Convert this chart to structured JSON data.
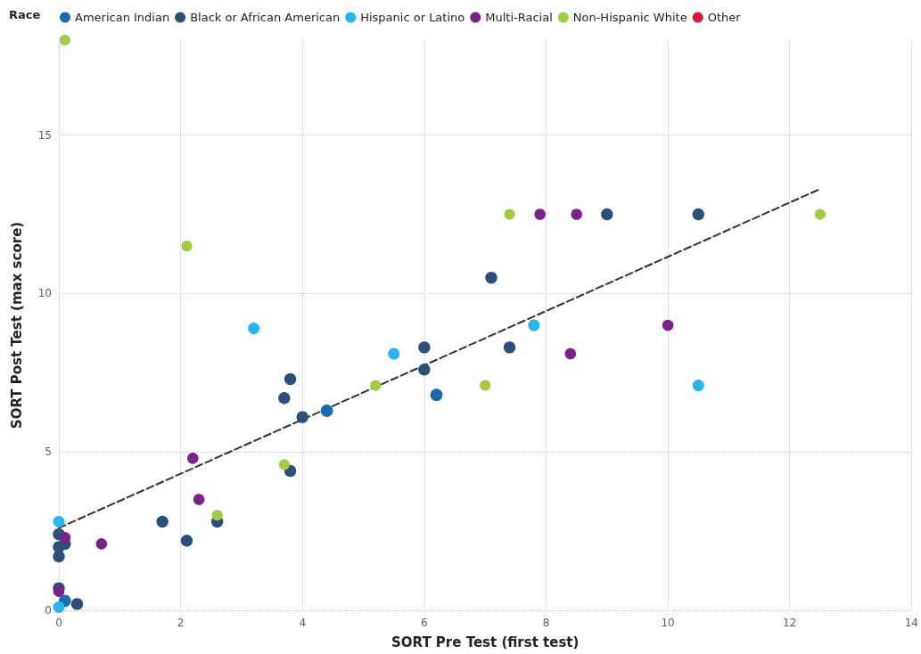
{
  "chart_data": {
    "type": "scatter",
    "xlabel": "SORT Pre Test (first test)",
    "ylabel": "SORT Post Test (max score)",
    "legend_title": "Race",
    "legend": "top left",
    "grid": true,
    "marker": "circle",
    "xlim": [
      0,
      14
    ],
    "xticks": [
      0,
      2,
      4,
      6,
      8,
      10,
      12,
      14
    ],
    "ylim": [
      0,
      18
    ],
    "yticks": [
      0,
      5,
      10,
      15
    ],
    "series": [
      {
        "name": "American Indian",
        "color": "#1c6ab0",
        "x": [
          0.1,
          4.4,
          6.2
        ],
        "values": [
          0.3,
          6.3,
          6.8
        ]
      },
      {
        "name": "Black or African American",
        "color": "#2b5079",
        "x": [
          0,
          0,
          0,
          0.1,
          1.7,
          2.1,
          2.6,
          0,
          0.3,
          3.8,
          3.7,
          4.0,
          3.8,
          6.0,
          6.0,
          7.1,
          9.0,
          10.5,
          7.4
        ],
        "values": [
          2.4,
          2.0,
          1.7,
          2.1,
          2.8,
          2.2,
          2.8,
          0.7,
          0.2,
          7.3,
          6.7,
          6.1,
          4.4,
          8.3,
          7.6,
          10.5,
          12.5,
          12.5,
          8.3
        ]
      },
      {
        "name": "Hispanic or Latino",
        "color": "#28b6f0",
        "x": [
          0,
          0,
          3.2,
          5.5,
          7.8,
          10.5
        ],
        "values": [
          2.8,
          0.1,
          8.9,
          8.1,
          9.0,
          7.1
        ]
      },
      {
        "name": "Multi-Racial",
        "color": "#7a2287",
        "x": [
          0.1,
          0,
          0.7,
          2.2,
          2.3,
          7.9,
          8.5,
          10.0,
          8.4
        ],
        "values": [
          2.3,
          0.6,
          2.1,
          4.8,
          3.5,
          12.5,
          12.5,
          9.0,
          8.1
        ]
      },
      {
        "name": "Non-Hispanic White",
        "color": "#a3cc45",
        "x": [
          0.1,
          2.1,
          2.6,
          3.7,
          5.2,
          7.4,
          7.0,
          12.5
        ],
        "values": [
          18,
          11.5,
          3.0,
          4.6,
          7.1,
          12.5,
          7.1,
          12.5
        ]
      },
      {
        "name": "Other",
        "color": "#d41a3c"
      },
      {
        "type": "line",
        "color": "#333333",
        "line_style": "dashed",
        "marker": "none",
        "x": [
          0,
          12.5
        ],
        "values": [
          2.6,
          13.3
        ]
      }
    ]
  }
}
